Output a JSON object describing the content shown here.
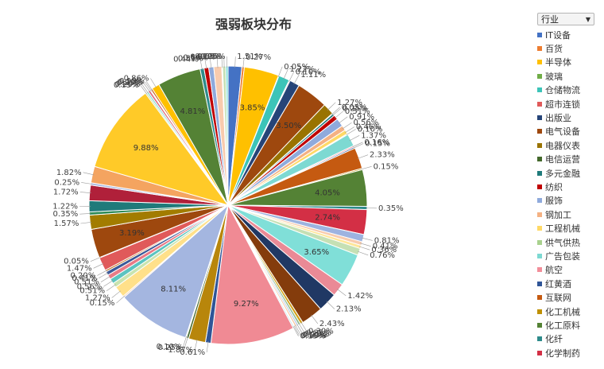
{
  "chart_data": {
    "type": "pie",
    "title": "强弱板块分布",
    "legend_title": "行业",
    "legend_position": "right",
    "slices": [
      {
        "label": "IT设备",
        "value": 1.51,
        "color": "#4472c4"
      },
      {
        "label": "百货",
        "value": 0.27,
        "color": "#ed7d31"
      },
      {
        "label": "半导体",
        "value": 3.85,
        "color": "#ffc000"
      },
      {
        "label": "玻璃",
        "value": 0.05,
        "color": "#70ad47"
      },
      {
        "label": "仓储物流",
        "value": 1.22,
        "color": "#3cc4b8"
      },
      {
        "label": "超市连锁",
        "value": 0.1,
        "color": "#e05a5a"
      },
      {
        "label": "出版业",
        "value": 1.11,
        "color": "#264478"
      },
      {
        "label": "电气设备",
        "value": 3.5,
        "color": "#9e480e"
      },
      {
        "label": "电器仪表",
        "value": 1.27,
        "color": "#997300"
      },
      {
        "label": "电信运营",
        "value": 0.05,
        "color": "#43682b"
      },
      {
        "label": "多元金融",
        "value": 0.25,
        "color": "#1f7a7a"
      },
      {
        "label": "纺织",
        "value": 0.51,
        "color": "#c00000"
      },
      {
        "label": "服饰",
        "value": 0.91,
        "color": "#8faadc"
      },
      {
        "label": "钢加工",
        "value": 0.56,
        "color": "#f4b183"
      },
      {
        "label": "工程机械",
        "value": 0.46,
        "color": "#ffd966"
      },
      {
        "label": "供气供热",
        "value": 0.1,
        "color": "#a9d18e"
      },
      {
        "label": "广告包装",
        "value": 1.37,
        "color": "#7dd9d2"
      },
      {
        "label": "航空",
        "value": 0.16,
        "color": "#f28e9a"
      },
      {
        "label": "红黄酒",
        "value": 0.15,
        "color": "#2f5597"
      },
      {
        "label": "互联网",
        "value": 2.33,
        "color": "#c55a11"
      },
      {
        "label": "化工机械",
        "value": 0.15,
        "color": "#bf9000"
      },
      {
        "label": "化工原料",
        "value": 4.05,
        "color": "#548235"
      },
      {
        "label": "化纤",
        "value": 0.35,
        "color": "#2e8b8b"
      },
      {
        "label": "化学制药",
        "value": 2.74,
        "color": "#d32f45"
      },
      {
        "label": "",
        "value": 0.81,
        "color": "#9db3e0"
      },
      {
        "label": "",
        "value": 0.41,
        "color": "#f8cbad"
      },
      {
        "label": "",
        "value": 0.36,
        "color": "#ffe699"
      },
      {
        "label": "",
        "value": 0.76,
        "color": "#c5e0b4"
      },
      {
        "label": "",
        "value": 3.65,
        "color": "#80dfd8"
      },
      {
        "label": "",
        "value": 1.42,
        "color": "#ea8a96"
      },
      {
        "label": "",
        "value": 2.13,
        "color": "#203864"
      },
      {
        "label": "",
        "value": 2.43,
        "color": "#843c0c"
      },
      {
        "label": "",
        "value": 0.3,
        "color": "#d4a017"
      },
      {
        "label": "",
        "value": 0.25,
        "color": "#8fbc8f"
      },
      {
        "label": "",
        "value": 0.2,
        "color": "#b4c7e7"
      },
      {
        "label": "",
        "value": 0.21,
        "color": "#f7c6a0"
      },
      {
        "label": "",
        "value": 0.1,
        "color": "#fff2cc"
      },
      {
        "label": "",
        "value": 0.15,
        "color": "#b7dee8"
      },
      {
        "label": "",
        "value": 9.27,
        "color": "#f08a94"
      },
      {
        "label": "",
        "value": 0.61,
        "color": "#2f5597"
      },
      {
        "label": "",
        "value": 1.87,
        "color": "#b8860b"
      },
      {
        "label": "",
        "value": 0.25,
        "color": "#43682b"
      },
      {
        "label": "",
        "value": 0.1,
        "color": "#70ad47"
      },
      {
        "label": "",
        "value": 8.11,
        "color": "#a4b6e0"
      },
      {
        "label": "",
        "value": 0.15,
        "color": "#f4c7a1"
      },
      {
        "label": "",
        "value": 1.27,
        "color": "#ffe08a"
      },
      {
        "label": "",
        "value": 0.51,
        "color": "#c9e4b0"
      },
      {
        "label": "",
        "value": 0.56,
        "color": "#5bc4c0"
      },
      {
        "label": "",
        "value": 0.51,
        "color": "#e87a86"
      },
      {
        "label": "",
        "value": 0.41,
        "color": "#3b5998"
      },
      {
        "label": "",
        "value": 0.2,
        "color": "#c0701e"
      },
      {
        "label": "",
        "value": 1.47,
        "color": "#e05a5a"
      },
      {
        "label": "",
        "value": 0.05,
        "color": "#4472c4"
      },
      {
        "label": "",
        "value": 3.19,
        "color": "#9e480e"
      },
      {
        "label": "",
        "value": 1.57,
        "color": "#a27c00"
      },
      {
        "label": "",
        "value": 0.35,
        "color": "#2e8b57"
      },
      {
        "label": "",
        "value": 1.22,
        "color": "#1f7a7a"
      },
      {
        "label": "",
        "value": 1.72,
        "color": "#b0203a"
      },
      {
        "label": "",
        "value": 0.25,
        "color": "#aab8e0"
      },
      {
        "label": "",
        "value": 1.82,
        "color": "#f4a460"
      },
      {
        "label": "",
        "value": 9.88,
        "color": "#ffca28"
      },
      {
        "label": "",
        "value": 0.15,
        "color": "#a9d18e"
      },
      {
        "label": "",
        "value": 0.2,
        "color": "#7dd9d2"
      },
      {
        "label": "",
        "value": 0.25,
        "color": "#e06b7d"
      },
      {
        "label": "",
        "value": 0.1,
        "color": "#2f5597"
      },
      {
        "label": "",
        "value": 0.19,
        "color": "#c55a11"
      },
      {
        "label": "",
        "value": 0.86,
        "color": "#ffc000"
      },
      {
        "label": "",
        "value": 4.81,
        "color": "#548235"
      },
      {
        "label": "",
        "value": 0.44,
        "color": "#2e8b8b"
      },
      {
        "label": "",
        "value": 0.51,
        "color": "#c00000"
      },
      {
        "label": "",
        "value": 0.56,
        "color": "#8faadc"
      },
      {
        "label": "",
        "value": 0.87,
        "color": "#f8cbad"
      },
      {
        "label": "",
        "value": 0.1,
        "color": "#ffe699"
      },
      {
        "label": "",
        "value": 0.35,
        "color": "#c5e0b4"
      },
      {
        "label": "",
        "value": 0.25,
        "color": "#80dfd8"
      }
    ]
  }
}
